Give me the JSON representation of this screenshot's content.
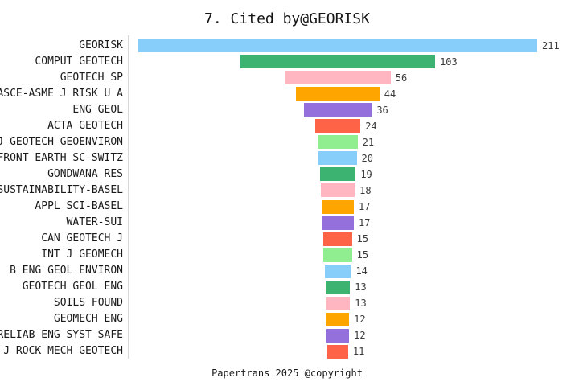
{
  "title": "7. Cited by@GEORISK",
  "footer": "Papertrans 2025 @copyright",
  "chart_data": {
    "type": "bar",
    "orientation": "horizontal-centered-funnel",
    "title": "7. Cited by@GEORISK",
    "xlabel": "",
    "ylabel": "",
    "grid": false,
    "legend": false,
    "value_labels_shown": true,
    "categories": [
      "GEORISK",
      "COMPUT GEOTECH",
      "GEOTECH SP",
      "ASCE-ASME J RISK U A",
      "ENG GEOL",
      "ACTA GEOTECH",
      "J GEOTECH GEOENVIRON",
      "FRONT EARTH SC-SWITZ",
      "GONDWANA RES",
      "SUSTAINABILITY-BASEL",
      "APPL SCI-BASEL",
      "WATER-SUI",
      "CAN GEOTECH J",
      "INT J GEOMECH",
      "B ENG GEOL ENVIRON",
      "GEOTECH GEOL ENG",
      "SOILS FOUND",
      "GEOMECH ENG",
      "RELIAB ENG SYST SAFE",
      "J ROCK MECH GEOTECH"
    ],
    "values": [
      211,
      103,
      56,
      44,
      36,
      24,
      21,
      20,
      19,
      18,
      17,
      17,
      15,
      15,
      14,
      13,
      13,
      12,
      12,
      11
    ],
    "palette": [
      "#87CEFA",
      "#3CB371",
      "#FFB6C1",
      "#FFA500",
      "#9370DB",
      "#FF6347",
      "#90EE90"
    ],
    "axis_line_color": "#d8d8d8"
  }
}
